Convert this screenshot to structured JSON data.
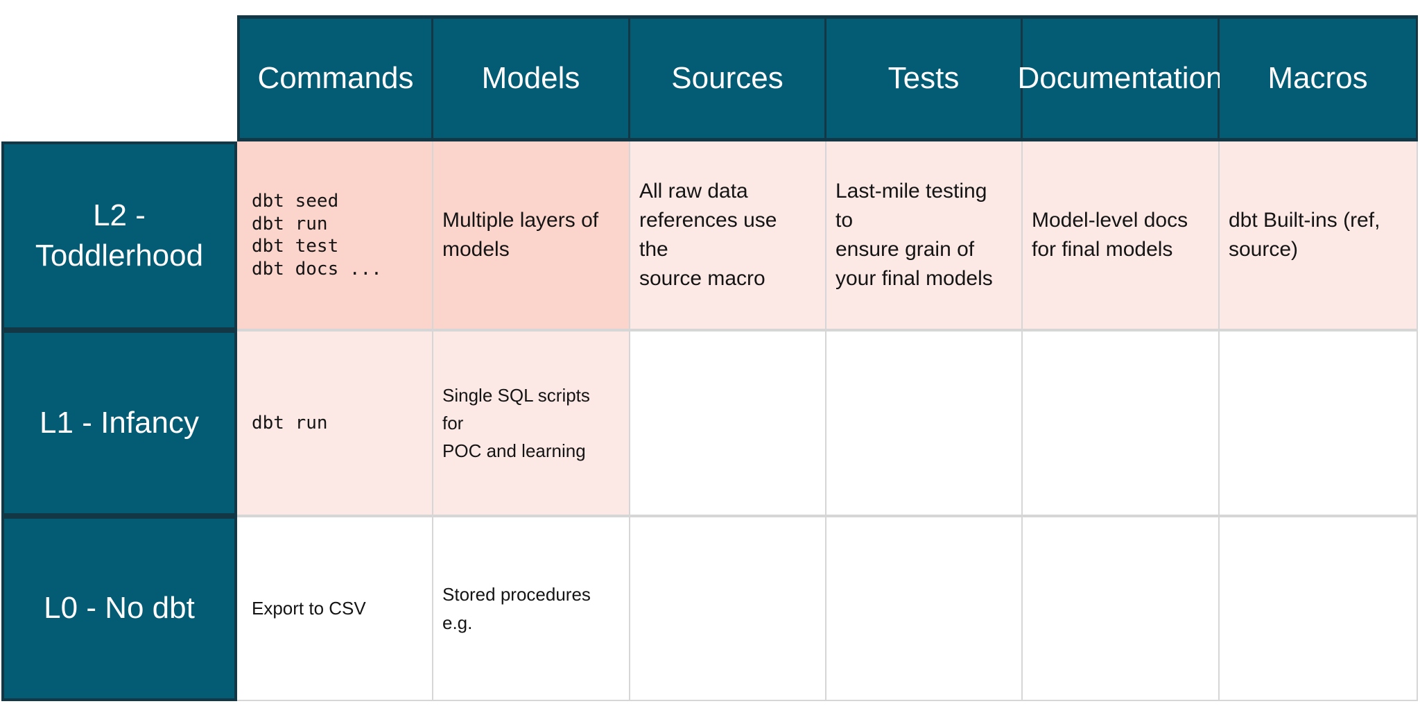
{
  "colors": {
    "teal": "#035B74",
    "teal-border": "#133745",
    "pink-strong": "#FBD4CC",
    "pink-soft": "#FCE9E5",
    "grid": "#D6D6D6",
    "text-dark": "#141414",
    "text-light": "#FFFFFF"
  },
  "table": {
    "corner": "",
    "columns": [
      "Commands",
      "Models",
      "Sources",
      "Tests",
      "Documentation",
      "Macros"
    ],
    "rows": [
      {
        "label": "L2 -\nToddlerhood",
        "cells": [
          {
            "text": "dbt seed\ndbt run\ndbt test\ndbt docs ...",
            "style": "mono",
            "bg": "pink-strong"
          },
          {
            "text": "Multiple layers of\nmodels",
            "style": "body-lg",
            "bg": "pink-strong"
          },
          {
            "text": "All raw data\nreferences use the\nsource macro",
            "style": "body-lg",
            "bg": "pink-soft"
          },
          {
            "text": "Last-mile testing to\nensure grain of\nyour final models",
            "style": "body-lg",
            "bg": "pink-soft"
          },
          {
            "text": "Model-level docs\nfor final models",
            "style": "body-lg",
            "bg": "pink-soft"
          },
          {
            "text": "dbt Built-ins (ref,\nsource)",
            "style": "body-lg",
            "bg": "pink-soft"
          }
        ]
      },
      {
        "label": "L1 - Infancy",
        "cells": [
          {
            "text": "dbt run",
            "style": "mono",
            "bg": "pink-soft"
          },
          {
            "text": "Single SQL scripts for\nPOC and learning",
            "style": "body-sm",
            "bg": "pink-soft"
          },
          {
            "text": "",
            "style": "body-sm",
            "bg": "white"
          },
          {
            "text": "",
            "style": "body-sm",
            "bg": "white"
          },
          {
            "text": "",
            "style": "body-sm",
            "bg": "white"
          },
          {
            "text": "",
            "style": "body-sm",
            "bg": "white"
          }
        ]
      },
      {
        "label": "L0 - No dbt",
        "cells": [
          {
            "text": "Export to CSV",
            "style": "body-sm",
            "bg": "white"
          },
          {
            "text": "Stored procedures\ne.g.",
            "style": "body-sm",
            "bg": "white"
          },
          {
            "text": "",
            "style": "body-sm",
            "bg": "white"
          },
          {
            "text": "",
            "style": "body-sm",
            "bg": "white"
          },
          {
            "text": "",
            "style": "body-sm",
            "bg": "white"
          },
          {
            "text": "",
            "style": "body-sm",
            "bg": "white"
          }
        ]
      }
    ]
  }
}
